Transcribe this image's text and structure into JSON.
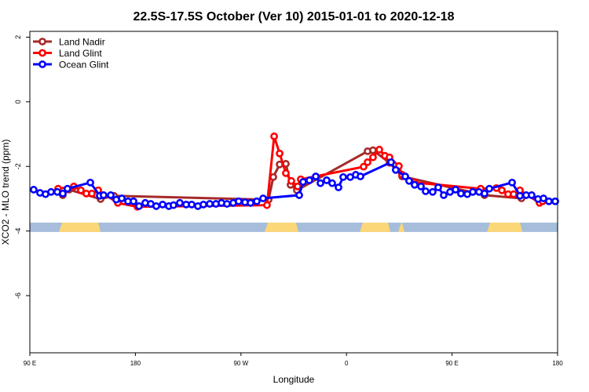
{
  "chart_data": {
    "type": "line",
    "title": "22.5S-17.5S October (Ver 10)   2015-01-01 to 2020-12-18",
    "xlabel": "Longitude",
    "ylabel": "XCO2 - MLO trend (ppm)",
    "xlim": [
      90,
      540
    ],
    "ylim": [
      -7.77,
      2.18
    ],
    "x_ticks": [
      {
        "value": 90,
        "label": "90 E"
      },
      {
        "value": 180,
        "label": "180"
      },
      {
        "value": 270,
        "label": "90 W"
      },
      {
        "value": 360,
        "label": "0"
      },
      {
        "value": 450,
        "label": "90 E"
      },
      {
        "value": 540,
        "label": "180"
      }
    ],
    "y_ticks": [
      {
        "value": 2,
        "label": "2"
      },
      {
        "value": 0,
        "label": "0"
      },
      {
        "value": -2,
        "label": "-2"
      },
      {
        "value": -4,
        "label": "-4"
      },
      {
        "value": -6,
        "label": "-6"
      }
    ],
    "grid": false,
    "legend_position": "top-left",
    "land_mask": {
      "y_range": [
        -4.03,
        -3.74
      ],
      "ocean_color": "#a6bddb",
      "land_color": "#fcd777",
      "land_segments": [
        [
          114.8,
          150.3
        ],
        [
          290.2,
          319
        ],
        [
          371.3,
          397.4
        ],
        [
          404.1,
          409.4
        ],
        [
          479.8,
          510
        ]
      ]
    },
    "series": [
      {
        "name": "Land Nadir",
        "color": "#a52a2a",
        "x": [
          118.1,
          123.5,
          150.3,
          161.7,
          293.6,
          297.6,
          303,
          308.3,
          312.3,
          317.7,
          378,
          382.6,
          396.7,
          407.4,
          477.7,
          509.2
        ],
        "y": [
          -2.89,
          -2.72,
          -3.01,
          -2.91,
          -3.03,
          -2.33,
          -1.94,
          -1.92,
          -2.57,
          -2.74,
          -1.53,
          -1.5,
          -1.89,
          -2.31,
          -2.89,
          -2.99
        ]
      },
      {
        "name": "Land Glint",
        "color": "#ff0000",
        "x": [
          114.1,
          127.5,
          133.5,
          138.2,
          142.9,
          148.3,
          165,
          181.7,
          292.2,
          298.3,
          303,
          308.3,
          313,
          318.4,
          321,
          374.6,
          378,
          382.6,
          388,
          392.7,
          396.7,
          404.7,
          407.4,
          418.1,
          474.4,
          487.8,
          492.5,
          497.8,
          502.5,
          507.9,
          524.6,
          527.3
        ],
        "y": [
          -2.69,
          -2.62,
          -2.74,
          -2.84,
          -2.84,
          -2.74,
          -3.13,
          -3.25,
          -3.2,
          -1.07,
          -1.6,
          -2.21,
          -2.45,
          -2.62,
          -2.4,
          -2.01,
          -1.87,
          -1.72,
          -1.48,
          -1.67,
          -1.72,
          -1.99,
          -2.26,
          -2.5,
          -2.69,
          -2.67,
          -2.74,
          -2.86,
          -2.86,
          -2.74,
          -3.13,
          -3.08
        ]
      },
      {
        "name": "Ocean Glint",
        "color": "#0000ff",
        "x": [
          93.3,
          98.7,
          103.4,
          108.1,
          113.4,
          118.1,
          122.1,
          141.6,
          149.6,
          152.9,
          159,
          163.7,
          168.4,
          173.7,
          178.4,
          183.1,
          188.4,
          193.1,
          197.8,
          203.2,
          208.5,
          212.5,
          217.9,
          223.3,
          228,
          233.3,
          238,
          243.4,
          248.7,
          253.4,
          258.1,
          263.4,
          268.1,
          273.5,
          278.2,
          283.5,
          288.9,
          319.7,
          323,
          328.4,
          333.8,
          337.8,
          343.1,
          347.8,
          353.2,
          357.2,
          363.2,
          367.9,
          371.9,
          398,
          402,
          410.1,
          413.4,
          418.1,
          423.5,
          427.5,
          433.5,
          438.2,
          442.9,
          448.3,
          453,
          457.6,
          463,
          467.7,
          473,
          477.7,
          481.8,
          501.2,
          507.9,
          513.2,
          517.9,
          523.3,
          528,
          532.6,
          538
        ],
        "y": [
          -2.72,
          -2.82,
          -2.86,
          -2.79,
          -2.79,
          -2.84,
          -2.69,
          -2.5,
          -2.91,
          -2.89,
          -2.89,
          -3.03,
          -2.99,
          -3.08,
          -3.08,
          -3.23,
          -3.13,
          -3.16,
          -3.23,
          -3.18,
          -3.23,
          -3.2,
          -3.13,
          -3.18,
          -3.18,
          -3.23,
          -3.18,
          -3.16,
          -3.16,
          -3.13,
          -3.16,
          -3.13,
          -3.08,
          -3.11,
          -3.13,
          -3.08,
          -2.99,
          -2.89,
          -2.48,
          -2.43,
          -2.31,
          -2.52,
          -2.43,
          -2.52,
          -2.65,
          -2.33,
          -2.33,
          -2.26,
          -2.31,
          -1.87,
          -2.11,
          -2.31,
          -2.45,
          -2.57,
          -2.62,
          -2.77,
          -2.79,
          -2.65,
          -2.89,
          -2.79,
          -2.72,
          -2.84,
          -2.86,
          -2.79,
          -2.79,
          -2.84,
          -2.69,
          -2.5,
          -2.91,
          -2.89,
          -2.89,
          -3.01,
          -2.99,
          -3.08,
          -3.08
        ]
      }
    ]
  }
}
